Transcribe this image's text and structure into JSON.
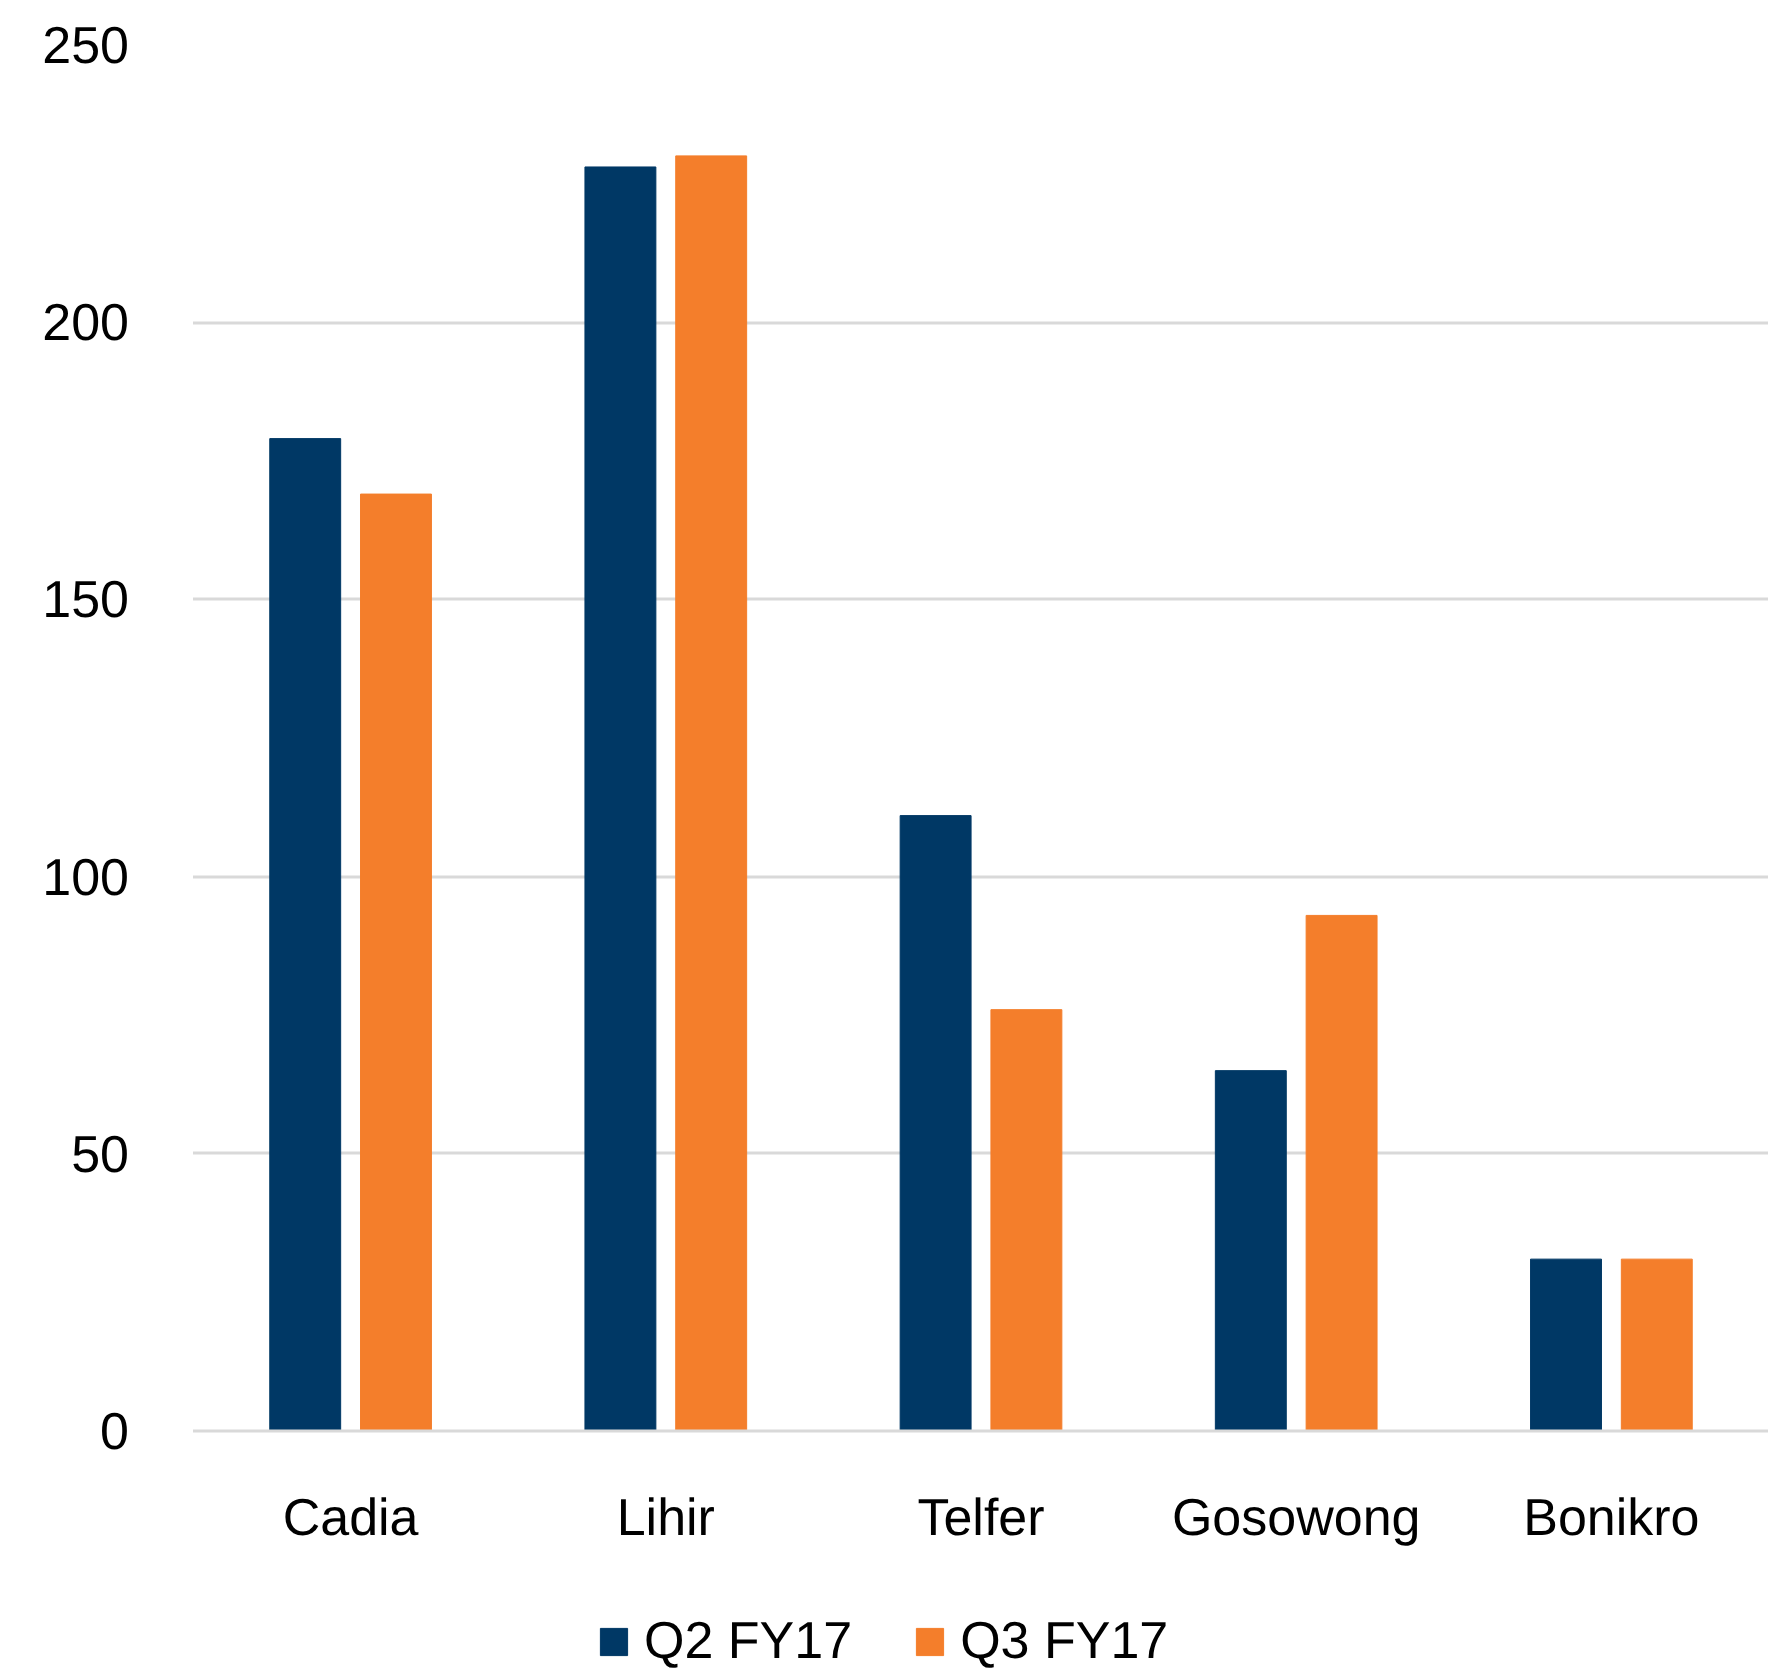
{
  "chart_data": {
    "type": "bar",
    "categories": [
      "Cadia",
      "Lihir",
      "Telfer",
      "Gosowong",
      "Bonikro"
    ],
    "series": [
      {
        "name": "Q2 FY17",
        "color": "#003865",
        "values": [
          179,
          228,
          111,
          65,
          31
        ]
      },
      {
        "name": "Q3 FY17",
        "color": "#f47e2b",
        "values": [
          169,
          230,
          76,
          93,
          31
        ]
      }
    ],
    "ylim": [
      0,
      250
    ],
    "yticks": [
      0,
      50,
      100,
      150,
      200,
      250
    ],
    "grid": "y",
    "legend": "bottom"
  }
}
